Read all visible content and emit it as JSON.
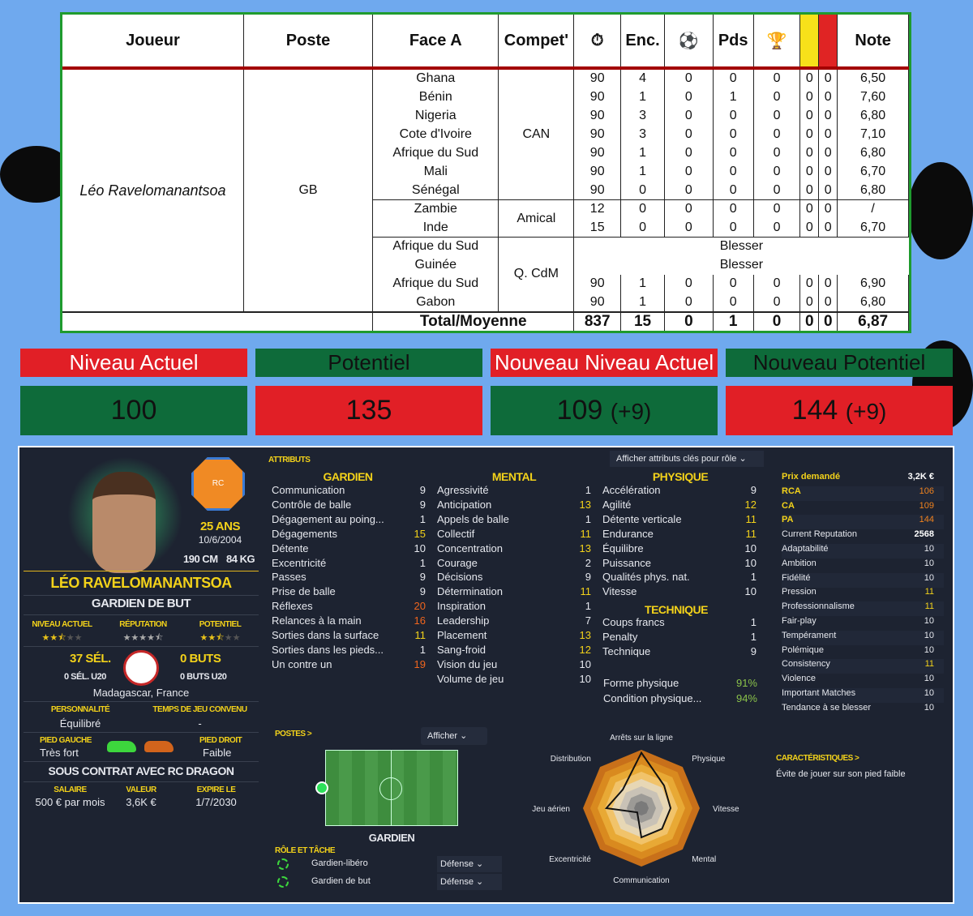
{
  "table": {
    "headers": [
      "Joueur",
      "Poste",
      "Face A",
      "Compet'",
      "⏱",
      "Enc.",
      "⚽",
      "Pds",
      "🏆",
      "",
      "",
      "Note"
    ],
    "player": "Léo Ravelomanantsoa",
    "position": "GB",
    "rows": [
      [
        "Ghana",
        "90",
        "4",
        "0",
        "0",
        "0",
        "0",
        "0",
        "6,50"
      ],
      [
        "Bénin",
        "90",
        "1",
        "0",
        "1",
        "0",
        "0",
        "0",
        "7,60"
      ],
      [
        "Nigeria",
        "90",
        "3",
        "0",
        "0",
        "0",
        "0",
        "0",
        "6,80"
      ],
      [
        "Cote d'Ivoire",
        "90",
        "3",
        "0",
        "0",
        "0",
        "0",
        "0",
        "7,10"
      ],
      [
        "Afrique du Sud",
        "90",
        "1",
        "0",
        "0",
        "0",
        "0",
        "0",
        "6,80"
      ],
      [
        "Mali",
        "90",
        "1",
        "0",
        "0",
        "0",
        "0",
        "0",
        "6,70"
      ],
      [
        "Sénégal",
        "90",
        "0",
        "0",
        "0",
        "0",
        "0",
        "0",
        "6,80"
      ],
      [
        "Zambie",
        "12",
        "0",
        "0",
        "0",
        "0",
        "0",
        "0",
        "/"
      ],
      [
        "Inde",
        "15",
        "0",
        "0",
        "0",
        "0",
        "0",
        "0",
        "6,70"
      ],
      [
        "Afrique du Sud",
        "Blesser"
      ],
      [
        "Guinée",
        "Blesser"
      ],
      [
        "Afrique du Sud",
        "90",
        "1",
        "0",
        "0",
        "0",
        "0",
        "0",
        "6,90"
      ],
      [
        "Gabon",
        "90",
        "1",
        "0",
        "0",
        "0",
        "0",
        "0",
        "6,80"
      ]
    ],
    "competitions": [
      "CAN",
      "Amical",
      "Q. CdM"
    ],
    "total": [
      "Total/Moyenne",
      "837",
      "15",
      "0",
      "1",
      "0",
      "0",
      "0",
      "6,87"
    ]
  },
  "banners": {
    "labels": [
      "Niveau Actuel",
      "Potentiel",
      "Nouveau Niveau Actuel",
      "Nouveau Potentiel"
    ],
    "values": [
      "100",
      "135",
      "109",
      "144"
    ],
    "deltas": [
      "",
      "",
      "(+9)",
      "(+9)"
    ]
  },
  "profile": {
    "club": "RC DRAGON",
    "age": "25 ANS",
    "dob": "10/6/2004",
    "height": "190 CM",
    "weight": "84 KG",
    "name": "LÉO RAVELOMANANTSOA",
    "role": "GARDIEN DE BUT",
    "ratings": [
      {
        "label": "NIVEAU ACTUEL",
        "stars": 2.5
      },
      {
        "label": "RÉPUTATION",
        "stars": 4.5
      },
      {
        "label": "POTENTIEL",
        "stars": 2.5
      }
    ],
    "caps": "37 SÉL.",
    "caps_u20": "0 SÉL. U20",
    "goals": "0 BUTS",
    "goals_u20": "0 BUTS U20",
    "nationality": "Madagascar, France",
    "personality_label": "PERSONNALITÉ",
    "personality": "Équilibré",
    "playtime_label": "TEMPS DE JEU CONVENU",
    "playtime": "-",
    "left_foot_label": "PIED GAUCHE",
    "left_foot": "Très fort",
    "right_foot_label": "PIED DROIT",
    "right_foot": "Faible",
    "contract": "SOUS CONTRAT AVEC RC DRAGON",
    "salary_label": "SALAIRE",
    "salary": "500 € par mois",
    "value_label": "VALEUR",
    "value": "3,6K €",
    "expiry_label": "EXPIRE LE",
    "expiry": "1/7/2030"
  },
  "attributes": {
    "title": "ATTRIBUTS",
    "role_dropdown": "Afficher attributs clés pour rôle",
    "gardien_title": "GARDIEN",
    "mental_title": "MENTAL",
    "physique_title": "PHYSIQUE",
    "technique_title": "TECHNIQUE",
    "gardien": [
      [
        "Communication",
        "9"
      ],
      [
        "Contrôle de balle",
        "9"
      ],
      [
        "Dégagement au poing...",
        "1"
      ],
      [
        "Dégagements",
        "15"
      ],
      [
        "Détente",
        "10"
      ],
      [
        "Excentricité",
        "1"
      ],
      [
        "Passes",
        "9"
      ],
      [
        "Prise de balle",
        "9"
      ],
      [
        "Réflexes",
        "20"
      ],
      [
        "Relances à la main",
        "16"
      ],
      [
        "Sorties dans la surface",
        "11"
      ],
      [
        "Sorties dans les pieds...",
        "1"
      ],
      [
        "Un contre un",
        "19"
      ]
    ],
    "mental": [
      [
        "Agressivité",
        "1"
      ],
      [
        "Anticipation",
        "13"
      ],
      [
        "Appels de balle",
        "1"
      ],
      [
        "Collectif",
        "11"
      ],
      [
        "Concentration",
        "13"
      ],
      [
        "Courage",
        "2"
      ],
      [
        "Décisions",
        "9"
      ],
      [
        "Détermination",
        "11"
      ],
      [
        "Inspiration",
        "1"
      ],
      [
        "Leadership",
        "7"
      ],
      [
        "Placement",
        "13"
      ],
      [
        "Sang-froid",
        "12"
      ],
      [
        "Vision du jeu",
        "10"
      ],
      [
        "Volume de jeu",
        "10"
      ]
    ],
    "physique": [
      [
        "Accélération",
        "9"
      ],
      [
        "Agilité",
        "12"
      ],
      [
        "Détente verticale",
        "11"
      ],
      [
        "Endurance",
        "11"
      ],
      [
        "Équilibre",
        "10"
      ],
      [
        "Puissance",
        "10"
      ],
      [
        "Qualités phys. nat.",
        "1"
      ],
      [
        "Vitesse",
        "10"
      ]
    ],
    "technique": [
      [
        "Coups francs",
        "1"
      ],
      [
        "Penalty",
        "1"
      ],
      [
        "Technique",
        "9"
      ]
    ],
    "fitness": [
      [
        "Forme physique",
        "91%"
      ],
      [
        "Condition physique...",
        "94%"
      ]
    ]
  },
  "hidden": [
    [
      "Prix demandé",
      "3,2K  €"
    ],
    [
      "RCA",
      "106"
    ],
    [
      "CA",
      "109"
    ],
    [
      "PA",
      "144"
    ],
    [
      "Current Reputation",
      "2568"
    ],
    [
      "Adaptabilité",
      "10"
    ],
    [
      "Ambition",
      "10"
    ],
    [
      "Fidélité",
      "10"
    ],
    [
      "Pression",
      "11"
    ],
    [
      "Professionnalisme",
      "11"
    ],
    [
      "Fair-play",
      "10"
    ],
    [
      "Tempérament",
      "10"
    ],
    [
      "Polémique",
      "10"
    ],
    [
      "Consistency",
      "11"
    ],
    [
      "Violence",
      "10"
    ],
    [
      "Important Matches",
      "10"
    ],
    [
      "Tendance à se blesser",
      "10"
    ]
  ],
  "positions": {
    "title": "POSTES >",
    "show": "Afficher",
    "pos_label": "GARDIEN",
    "role_title": "RÔLE ET TÂCHE",
    "roles": [
      [
        "Gardien-libéro",
        "Défense"
      ],
      [
        "Gardien de but",
        "Défense"
      ]
    ]
  },
  "radar": {
    "labels": [
      "Arrêts sur la ligne",
      "Physique",
      "Vitesse",
      "Mental",
      "Communication",
      "Excentricité",
      "Jeu aérien",
      "Distribution"
    ],
    "values": [
      0.95,
      0.55,
      0.5,
      0.5,
      0.5,
      0.1,
      0.6,
      0.45
    ]
  },
  "traits": {
    "title": "CARACTÉRISTIQUES >",
    "text": "Évite de jouer sur son pied faible"
  }
}
